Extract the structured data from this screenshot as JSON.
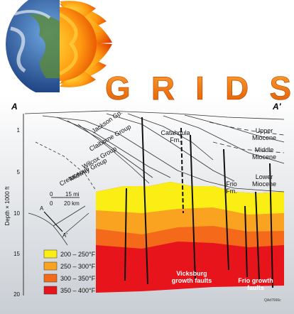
{
  "logo": {
    "title": "GRIDS"
  },
  "section": {
    "start_label": "A",
    "end_label": "A′",
    "axis_title": "Depth × 1000 ft",
    "depth_ticks": [
      "1",
      "5",
      "10",
      "15",
      "20"
    ],
    "units": [
      {
        "lines": [
          "Jackson Gp."
        ]
      },
      {
        "lines": [
          "Claiborne Group"
        ]
      },
      {
        "lines": [
          "Wilcox Group"
        ]
      },
      {
        "lines": [
          "Midway Group"
        ]
      },
      {
        "lines": [
          "Cretaceous"
        ]
      },
      {
        "lines": [
          "Catahoula",
          "Fm."
        ]
      },
      {
        "lines": [
          "Upper",
          "Miocene"
        ]
      },
      {
        "lines": [
          "Middle",
          "Miocene"
        ]
      },
      {
        "lines": [
          "Lower",
          "Miocene"
        ]
      },
      {
        "lines": [
          "Frio",
          "Fm."
        ]
      },
      {
        "lines": [
          "Vicksburg",
          "growth faults"
        ]
      },
      {
        "lines": [
          "Frio growth",
          "faults"
        ]
      }
    ],
    "legend": [
      "200 – 250°F",
      "250 – 300°F",
      "300 – 350°F",
      "350 – 400°F"
    ],
    "scale": [
      "0",
      "15 mi",
      "0",
      "20 km"
    ],
    "map_labels": [
      "A",
      "A′"
    ],
    "credit": "QAd7666c"
  }
}
